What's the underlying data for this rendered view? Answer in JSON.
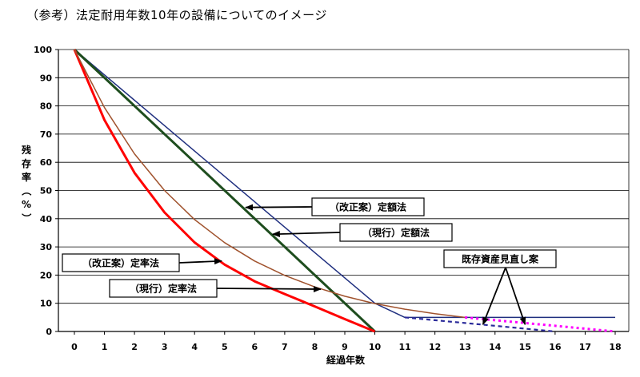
{
  "page_title": "（参考）法定耐用年数10年の設備についてのイメージ",
  "chart_data": {
    "type": "line",
    "title": "（参考）法定耐用年数10年の設備についてのイメージ",
    "xlabel": "経過年数",
    "ylabel": "残存率（%）",
    "xlim": [
      0,
      18
    ],
    "ylim": [
      0,
      100
    ],
    "x_ticks": [
      0,
      1,
      2,
      3,
      4,
      5,
      6,
      7,
      8,
      9,
      10,
      11,
      12,
      13,
      14,
      15,
      16,
      17,
      18
    ],
    "y_ticks": [
      0,
      10,
      20,
      30,
      40,
      50,
      60,
      70,
      80,
      90,
      100
    ],
    "grid": "horizontal",
    "series": [
      {
        "name": "（改正案）定額法",
        "color": "#1f2f7f",
        "dash": "solid",
        "x": [
          0,
          1,
          2,
          3,
          4,
          5,
          6,
          7,
          8,
          9,
          10,
          11,
          12,
          13,
          14,
          15,
          16,
          17,
          18
        ],
        "y": [
          100,
          91,
          82,
          73,
          64,
          55,
          46,
          37,
          28,
          19,
          10,
          5,
          5,
          5,
          5,
          5,
          5,
          5,
          5
        ]
      },
      {
        "name": "（現行）定額法",
        "color": "#1e4d1e",
        "dash": "solid",
        "x": [
          0,
          10
        ],
        "y": [
          100,
          0
        ]
      },
      {
        "name": "（改正案）定率法",
        "color": "#ff0000",
        "dash": "solid",
        "x": [
          0,
          1,
          2,
          3,
          4,
          5,
          6,
          7,
          8,
          9,
          10
        ],
        "y": [
          100,
          75,
          56.3,
          42.2,
          31.6,
          23.7,
          17.8,
          13.3,
          8.9,
          4.4,
          0
        ]
      },
      {
        "name": "（現行）定率法",
        "color": "#a0522d",
        "dash": "solid",
        "x": [
          0,
          1,
          2,
          3,
          4,
          5,
          6,
          7,
          8,
          9,
          10,
          11,
          12,
          13
        ],
        "y": [
          100,
          79.4,
          63.0,
          50.0,
          39.7,
          31.5,
          25.0,
          19.9,
          15.8,
          12.5,
          9.9,
          7.9,
          6.3,
          5
        ]
      },
      {
        "name": "既存資産見直し案",
        "color": "#ff00ff",
        "dash": "dotted",
        "x": [
          13,
          14,
          15,
          16,
          17,
          18
        ],
        "y": [
          5,
          4,
          3,
          2,
          1,
          0
        ]
      },
      {
        "name": "既存資産見直し案",
        "color": "#2a2a9a",
        "dash": "dashed",
        "x": [
          11,
          12,
          13,
          14,
          15,
          16
        ],
        "y": [
          5,
          4,
          3,
          2,
          1,
          0
        ]
      }
    ],
    "annotations": [
      {
        "text": "（改正案）定額法",
        "arrow_target": [
          5.7,
          44
        ]
      },
      {
        "text": "（現行）定額法",
        "arrow_target": [
          6.6,
          34.5
        ]
      },
      {
        "text": "（改正案）定率法",
        "arrow_target": [
          4.9,
          25
        ]
      },
      {
        "text": "（現行）定率法",
        "arrow_target": [
          8.2,
          15
        ]
      },
      {
        "text": "既存資産見直し案",
        "arrow_targets": [
          [
            13.6,
            2.5
          ],
          [
            15,
            2.5
          ]
        ]
      }
    ]
  }
}
